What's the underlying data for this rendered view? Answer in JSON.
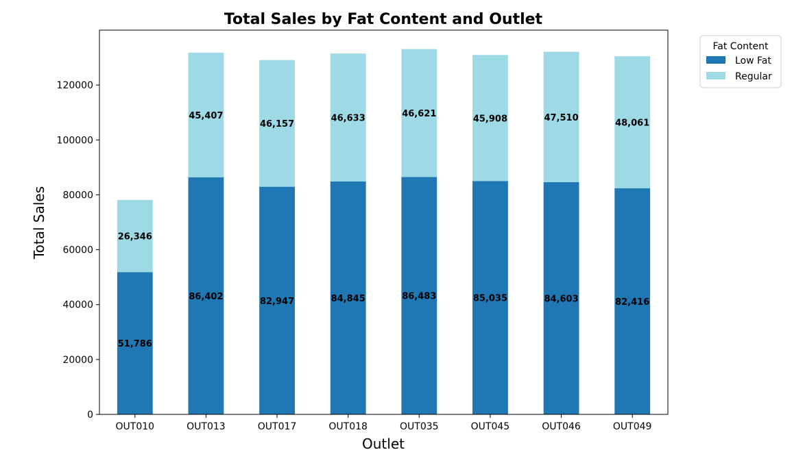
{
  "chart_data": {
    "type": "bar",
    "stacked": true,
    "title": "Total Sales by Fat Content and Outlet",
    "xlabel": "Outlet",
    "ylabel": "Total Sales",
    "categories": [
      "OUT010",
      "OUT013",
      "OUT017",
      "OUT018",
      "OUT035",
      "OUT045",
      "OUT046",
      "OUT049"
    ],
    "series": [
      {
        "name": "Low Fat",
        "color": "#1f77b4",
        "values": [
          51786,
          86402,
          82947,
          84845,
          86483,
          85035,
          84603,
          82416
        ],
        "labels": [
          "51,786",
          "86,402",
          "82,947",
          "84,845",
          "86,483",
          "85,035",
          "84,603",
          "82,416"
        ]
      },
      {
        "name": "Regular",
        "color": "#9edae5",
        "values": [
          26346,
          45407,
          46157,
          46633,
          46621,
          45908,
          47510,
          48061
        ],
        "labels": [
          "26,346",
          "45,407",
          "46,157",
          "46,633",
          "46,621",
          "45,908",
          "47,510",
          "48,061"
        ]
      }
    ],
    "ylim": [
      0,
      140000
    ],
    "yticks": [
      0,
      20000,
      40000,
      60000,
      80000,
      100000,
      120000
    ],
    "ytick_labels": [
      "0",
      "20000",
      "40000",
      "60000",
      "80000",
      "100000",
      "120000"
    ],
    "grid": false,
    "legend": {
      "title": "Fat Content",
      "placement": "outside-top-right"
    }
  }
}
